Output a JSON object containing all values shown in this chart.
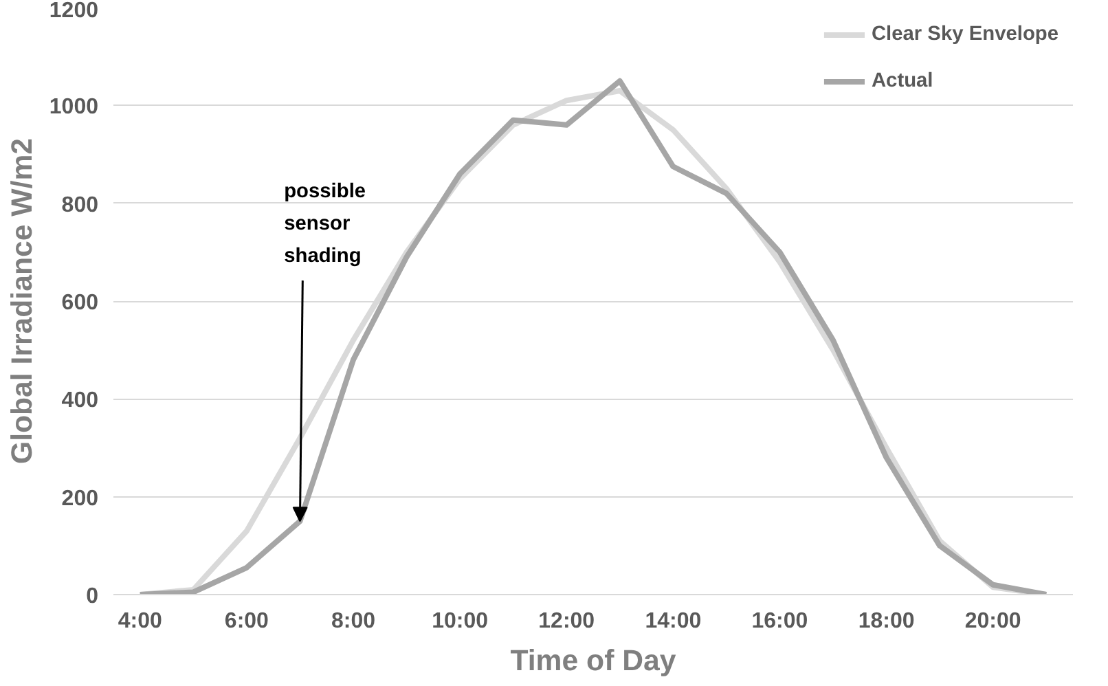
{
  "chart_data": {
    "type": "line",
    "xlabel": "Time of Day",
    "ylabel": "Global Irradiance W/m2",
    "x": [
      4,
      5,
      6,
      7,
      8,
      9,
      10,
      11,
      12,
      13,
      14,
      15,
      16,
      17,
      18,
      19,
      20,
      21
    ],
    "series": [
      {
        "name": "Clear Sky Envelope",
        "color": "#d9d9d9",
        "values": [
          0,
          10,
          130,
          320,
          520,
          700,
          850,
          960,
          1010,
          1030,
          950,
          830,
          680,
          500,
          300,
          110,
          15,
          0
        ]
      },
      {
        "name": "Actual",
        "color": "#a6a6a6",
        "values": [
          0,
          5,
          55,
          150,
          480,
          690,
          860,
          970,
          960,
          1050,
          875,
          820,
          700,
          520,
          280,
          100,
          20,
          0
        ]
      }
    ],
    "xlim": [
      3.5,
      21.5
    ],
    "xticks": [
      {
        "value": 4,
        "label": "4:00"
      },
      {
        "value": 6,
        "label": "6:00"
      },
      {
        "value": 8,
        "label": "8:00"
      },
      {
        "value": 10,
        "label": "10:00"
      },
      {
        "value": 12,
        "label": "12:00"
      },
      {
        "value": 14,
        "label": "14:00"
      },
      {
        "value": 16,
        "label": "16:00"
      },
      {
        "value": 18,
        "label": "18:00"
      },
      {
        "value": 20,
        "label": "20:00"
      }
    ],
    "ylim": [
      0,
      1200
    ],
    "yticks": [
      0,
      200,
      400,
      600,
      800,
      1000,
      1200
    ],
    "grid": "y",
    "legend": "top right",
    "marker": "none",
    "line_style": "solid",
    "annotations": [
      {
        "text": "possible sensor shading",
        "x": 7,
        "y": 150
      }
    ]
  }
}
